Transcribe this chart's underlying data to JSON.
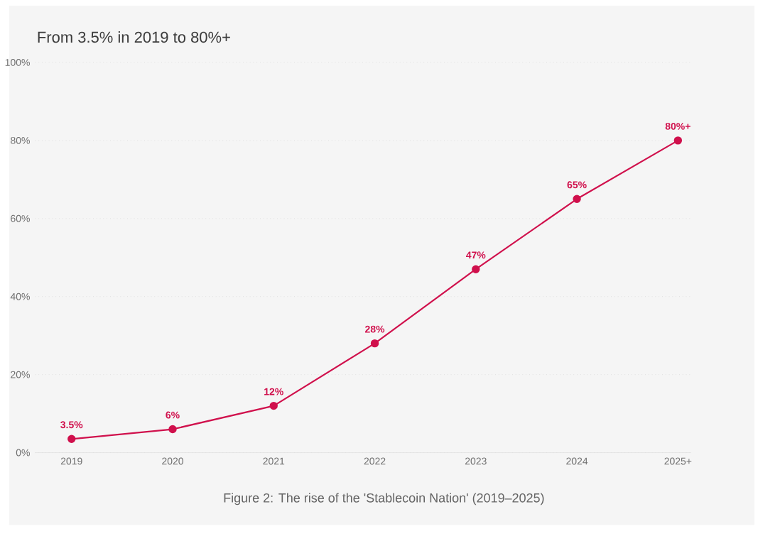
{
  "chart_data": {
    "type": "line",
    "title": "From 3.5% in 2019 to 80%+",
    "categories": [
      "2019",
      "2020",
      "2021",
      "2022",
      "2023",
      "2024",
      "2025+"
    ],
    "series": [
      {
        "color": "#d0104c",
        "values": [
          3.5,
          6,
          12,
          28,
          47,
          65,
          80
        ],
        "value_labels": [
          "3.5%",
          "6%",
          "12%",
          "28%",
          "47%",
          "65%",
          "80%+"
        ]
      }
    ],
    "ylim": [
      0,
      100
    ],
    "yticks": [
      {
        "value": 0,
        "label": "0%"
      },
      {
        "value": 20,
        "label": "20%"
      },
      {
        "value": 40,
        "label": "40%"
      },
      {
        "value": 60,
        "label": "60%"
      },
      {
        "value": 80,
        "label": "80%"
      },
      {
        "value": 100,
        "label": "100%"
      }
    ],
    "grid": "y",
    "marker": "circle",
    "line_style": "solid",
    "annotations": [
      "Figure 2: The rise of the 'Stablecoin Nation' (2019–2025)"
    ]
  }
}
